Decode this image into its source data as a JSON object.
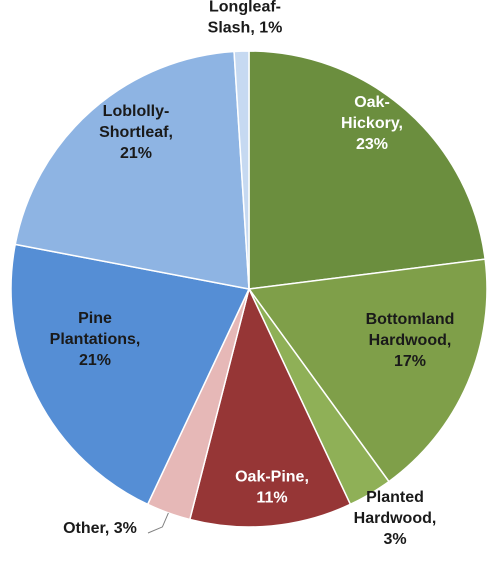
{
  "chart_data": {
    "type": "pie",
    "title": "",
    "legend": "none",
    "slices": [
      {
        "name": "Oak-Hickory",
        "value": 23,
        "color": "#6b8e3e",
        "label_lines": [
          "Oak-",
          "Hickory,",
          "23%"
        ],
        "label_color": "#ffffff"
      },
      {
        "name": "Bottomland Hardwood",
        "value": 17,
        "color": "#7f9f49",
        "label_lines": [
          "Bottomland",
          "Hardwood,",
          "17%"
        ],
        "label_color": "#1a1a1a"
      },
      {
        "name": "Planted Hardwood",
        "value": 3,
        "color": "#8fb057",
        "label_lines": [
          "Planted",
          "Hardwood,",
          "3%"
        ],
        "label_color": "#1a1a1a"
      },
      {
        "name": "Oak-Pine",
        "value": 11,
        "color": "#963636",
        "label_lines": [
          "Oak-Pine,",
          "11%"
        ],
        "label_color": "#ffffff"
      },
      {
        "name": "Other",
        "value": 3,
        "color": "#e6b8b7",
        "label_lines": [
          "Other, 3%"
        ],
        "label_color": "#1a1a1a"
      },
      {
        "name": "Pine Plantations",
        "value": 21,
        "color": "#558ed5",
        "label_lines": [
          "Pine",
          "Plantations,",
          "21%"
        ],
        "label_color": "#1a1a1a"
      },
      {
        "name": "Loblolly-Shortleaf",
        "value": 21,
        "color": "#8eb4e3",
        "label_lines": [
          "Loblolly-",
          "Shortleaf,",
          "21%"
        ],
        "label_color": "#1a1a1a"
      },
      {
        "name": "Longleaf-Slash",
        "value": 1,
        "color": "#c6d9f1",
        "label_lines": [
          "Longleaf-",
          "Slash, 1%"
        ],
        "label_color": "#1a1a1a"
      }
    ]
  }
}
